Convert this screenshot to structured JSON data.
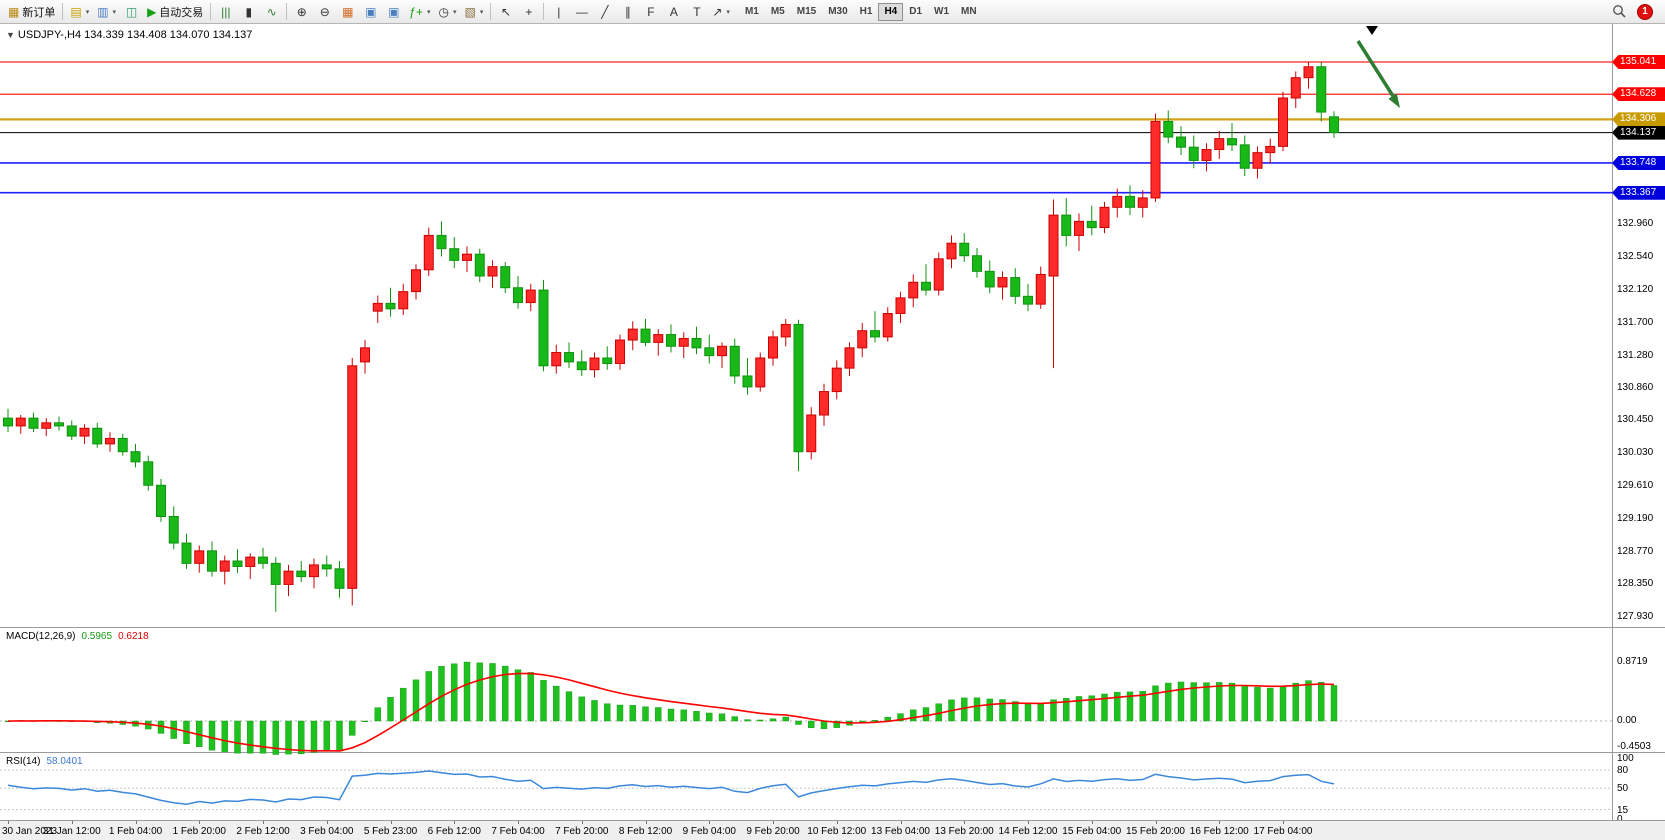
{
  "colors": {
    "up": "#ff2a2a",
    "up_border": "#cc0000",
    "down": "#18b818",
    "down_border": "#0f930f",
    "macd_hist": "#1ec11e",
    "macd_hist_border": "#0f930f",
    "macd_signal": "#ff0000",
    "rsi_line": "#3b87d9",
    "level_red": "#ff2020",
    "level_gold": "#d4a017",
    "level_blue": "#2020ff",
    "level_black": "#000000",
    "arrow_green": "#2e7d32"
  },
  "toolbar": {
    "items": [
      {
        "type": "button",
        "name": "new-order-button",
        "glyph": "▦",
        "color": "#b8860b",
        "label": "新订单"
      },
      {
        "type": "sep"
      },
      {
        "type": "button",
        "name": "new-chart-button",
        "glyph": "▤",
        "color": "#c8a000",
        "dropdown": true
      },
      {
        "type": "button",
        "name": "profiles-button",
        "glyph": "▥",
        "color": "#4a7ebf",
        "dropdown": true
      },
      {
        "type": "button",
        "name": "refresh-button",
        "glyph": "◫",
        "color": "#2e9e6b"
      },
      {
        "type": "button",
        "name": "autotrading-button",
        "glyph": "▶",
        "color": "#15a015",
        "label": "自动交易"
      },
      {
        "type": "sep"
      },
      {
        "type": "button",
        "name": "bar-chart-button",
        "glyph": "|||",
        "color": "#2e7d32"
      },
      {
        "type": "button",
        "name": "candle-chart-button",
        "glyph": "▮",
        "color": "#333333"
      },
      {
        "type": "button",
        "name": "line-chart-button",
        "glyph": "∿",
        "color": "#2e7d32"
      },
      {
        "type": "sep"
      },
      {
        "type": "button",
        "name": "zoom-in-button",
        "glyph": "⊕",
        "color": "#333333"
      },
      {
        "type": "button",
        "name": "zoom-out-button",
        "glyph": "⊖",
        "color": "#333333"
      },
      {
        "type": "button",
        "name": "tile-windows-button",
        "glyph": "▦",
        "color": "#d2691e"
      },
      {
        "type": "button",
        "name": "arrange-windows-button",
        "glyph": "▣",
        "color": "#4a7ebf"
      },
      {
        "type": "button",
        "name": "cascade-windows-button",
        "glyph": "▣",
        "color": "#4a7ebf"
      },
      {
        "type": "button",
        "name": "indicators-button",
        "glyph": "ƒ+",
        "color": "#15a015",
        "dropdown": true
      },
      {
        "type": "button",
        "name": "periods-button",
        "glyph": "◷",
        "color": "#333333",
        "dropdown": true
      },
      {
        "type": "button",
        "name": "templates-button",
        "glyph": "▧",
        "color": "#8a6d3b",
        "dropdown": true
      },
      {
        "type": "sep"
      },
      {
        "type": "button",
        "name": "cursor-button",
        "glyph": "↖",
        "color": "#333333"
      },
      {
        "type": "button",
        "name": "crosshair-button",
        "glyph": "+",
        "color": "#333333"
      },
      {
        "type": "sep"
      },
      {
        "type": "button",
        "name": "vertical-line-button",
        "glyph": "|",
        "color": "#333333"
      },
      {
        "type": "button",
        "name": "horizontal-line-button",
        "glyph": "—",
        "color": "#333333"
      },
      {
        "type": "button",
        "name": "trendline-button",
        "glyph": "╱",
        "color": "#333333"
      },
      {
        "type": "button",
        "name": "channel-button",
        "glyph": "∥",
        "color": "#333333"
      },
      {
        "type": "button",
        "name": "fibonacci-button",
        "glyph": "F",
        "color": "#333333"
      },
      {
        "type": "button",
        "name": "text-button",
        "glyph": "A",
        "color": "#333333"
      },
      {
        "type": "button",
        "name": "label-button",
        "glyph": "T",
        "color": "#333333"
      },
      {
        "type": "button",
        "name": "shapes-button",
        "glyph": "↗",
        "color": "#333333",
        "dropdown": true
      }
    ],
    "timeframes": [
      "M1",
      "M5",
      "M15",
      "M30",
      "H1",
      "H4",
      "D1",
      "W1",
      "MN"
    ],
    "active_timeframe": "H4",
    "notification_count": "1"
  },
  "chart_data": {
    "type": "candlestick",
    "symbol": "USDJPY-",
    "timeframe": "H4",
    "title": "USDJPY-,H4 134.339 134.408 134.070 134.137",
    "ohlc_current": {
      "open": 134.339,
      "high": 134.408,
      "low": 134.07,
      "close": 134.137
    },
    "y_range": [
      127.8,
      135.53
    ],
    "grid": false,
    "candles": [
      [
        130.48,
        130.6,
        130.3,
        130.38
      ],
      [
        130.38,
        130.52,
        130.28,
        130.48
      ],
      [
        130.48,
        130.55,
        130.3,
        130.35
      ],
      [
        130.35,
        130.48,
        130.25,
        130.42
      ],
      [
        130.42,
        130.5,
        130.32,
        130.38
      ],
      [
        130.38,
        130.45,
        130.2,
        130.25
      ],
      [
        130.25,
        130.4,
        130.15,
        130.35
      ],
      [
        130.35,
        130.42,
        130.1,
        130.15
      ],
      [
        130.15,
        130.3,
        130.05,
        130.22
      ],
      [
        130.22,
        130.28,
        130.0,
        130.05
      ],
      [
        130.05,
        130.15,
        129.85,
        129.92
      ],
      [
        129.92,
        130.0,
        129.55,
        129.62
      ],
      [
        129.62,
        129.7,
        129.15,
        129.22
      ],
      [
        129.22,
        129.35,
        128.8,
        128.88
      ],
      [
        128.88,
        129.0,
        128.55,
        128.62
      ],
      [
        128.62,
        128.85,
        128.5,
        128.78
      ],
      [
        128.78,
        128.9,
        128.45,
        128.52
      ],
      [
        128.52,
        128.72,
        128.35,
        128.65
      ],
      [
        128.65,
        128.8,
        128.5,
        128.58
      ],
      [
        128.58,
        128.75,
        128.42,
        128.7
      ],
      [
        128.7,
        128.82,
        128.55,
        128.62
      ],
      [
        128.62,
        128.7,
        128.0,
        128.35
      ],
      [
        128.35,
        128.6,
        128.2,
        128.52
      ],
      [
        128.52,
        128.65,
        128.38,
        128.45
      ],
      [
        128.45,
        128.68,
        128.3,
        128.6
      ],
      [
        128.6,
        128.72,
        128.45,
        128.55
      ],
      [
        128.55,
        128.65,
        128.18,
        128.3
      ],
      [
        128.3,
        131.25,
        128.08,
        131.15
      ],
      [
        131.2,
        131.48,
        131.05,
        131.38
      ],
      [
        131.85,
        132.05,
        131.7,
        131.95
      ],
      [
        131.95,
        132.15,
        131.78,
        131.88
      ],
      [
        131.88,
        132.2,
        131.8,
        132.1
      ],
      [
        132.1,
        132.45,
        132.0,
        132.38
      ],
      [
        132.38,
        132.92,
        132.3,
        132.82
      ],
      [
        132.82,
        133.0,
        132.55,
        132.65
      ],
      [
        132.65,
        132.8,
        132.4,
        132.5
      ],
      [
        132.5,
        132.68,
        132.35,
        132.58
      ],
      [
        132.58,
        132.65,
        132.22,
        132.3
      ],
      [
        132.3,
        132.5,
        132.15,
        132.42
      ],
      [
        132.42,
        132.48,
        132.08,
        132.15
      ],
      [
        132.15,
        132.3,
        131.88,
        131.96
      ],
      [
        131.96,
        132.2,
        131.85,
        132.12
      ],
      [
        132.12,
        132.25,
        131.08,
        131.15
      ],
      [
        131.15,
        131.42,
        131.05,
        131.32
      ],
      [
        131.32,
        131.45,
        131.12,
        131.2
      ],
      [
        131.2,
        131.35,
        131.02,
        131.1
      ],
      [
        131.1,
        131.32,
        131.0,
        131.25
      ],
      [
        131.25,
        131.4,
        131.1,
        131.18
      ],
      [
        131.18,
        131.55,
        131.1,
        131.48
      ],
      [
        131.48,
        131.72,
        131.35,
        131.62
      ],
      [
        131.62,
        131.75,
        131.4,
        131.45
      ],
      [
        131.45,
        131.62,
        131.28,
        131.55
      ],
      [
        131.55,
        131.68,
        131.32,
        131.4
      ],
      [
        131.4,
        131.58,
        131.25,
        131.5
      ],
      [
        131.5,
        131.65,
        131.3,
        131.38
      ],
      [
        131.38,
        131.55,
        131.18,
        131.28
      ],
      [
        131.28,
        131.45,
        131.12,
        131.4
      ],
      [
        131.4,
        131.5,
        130.92,
        131.02
      ],
      [
        131.02,
        131.25,
        130.78,
        130.88
      ],
      [
        130.88,
        131.32,
        130.82,
        131.25
      ],
      [
        131.25,
        131.6,
        131.15,
        131.52
      ],
      [
        131.52,
        131.75,
        131.4,
        131.68
      ],
      [
        131.68,
        131.74,
        129.8,
        130.05
      ],
      [
        130.05,
        130.62,
        129.95,
        130.52
      ],
      [
        130.52,
        130.92,
        130.38,
        130.82
      ],
      [
        130.82,
        131.22,
        130.72,
        131.12
      ],
      [
        131.12,
        131.45,
        131.02,
        131.38
      ],
      [
        131.38,
        131.7,
        131.26,
        131.6
      ],
      [
        131.6,
        131.85,
        131.45,
        131.52
      ],
      [
        131.52,
        131.9,
        131.46,
        131.82
      ],
      [
        131.82,
        132.1,
        131.7,
        132.02
      ],
      [
        132.02,
        132.32,
        131.9,
        132.22
      ],
      [
        132.22,
        132.45,
        132.05,
        132.12
      ],
      [
        132.12,
        132.6,
        132.05,
        132.52
      ],
      [
        132.52,
        132.82,
        132.4,
        132.72
      ],
      [
        132.72,
        132.85,
        132.48,
        132.56
      ],
      [
        132.56,
        132.66,
        132.28,
        132.36
      ],
      [
        132.36,
        132.5,
        132.08,
        132.16
      ],
      [
        132.16,
        132.36,
        132.0,
        132.28
      ],
      [
        132.28,
        132.4,
        131.94,
        132.04
      ],
      [
        132.04,
        132.2,
        131.85,
        131.94
      ],
      [
        131.94,
        132.42,
        131.88,
        132.32
      ],
      [
        132.3,
        133.28,
        131.12,
        133.08
      ],
      [
        133.08,
        133.3,
        132.68,
        132.82
      ],
      [
        132.82,
        133.1,
        132.62,
        133.0
      ],
      [
        133.0,
        133.2,
        132.82,
        132.92
      ],
      [
        132.92,
        133.25,
        132.85,
        133.18
      ],
      [
        133.18,
        133.42,
        133.05,
        133.32
      ],
      [
        133.32,
        133.46,
        133.08,
        133.18
      ],
      [
        133.18,
        133.4,
        133.05,
        133.3
      ],
      [
        133.3,
        134.38,
        133.25,
        134.28
      ],
      [
        134.28,
        134.42,
        134.0,
        134.08
      ],
      [
        134.08,
        134.22,
        133.85,
        133.95
      ],
      [
        133.95,
        134.1,
        133.68,
        133.78
      ],
      [
        133.78,
        134.0,
        133.64,
        133.92
      ],
      [
        133.92,
        134.16,
        133.8,
        134.06
      ],
      [
        134.06,
        134.26,
        133.9,
        133.98
      ],
      [
        133.98,
        134.1,
        133.58,
        133.68
      ],
      [
        133.68,
        133.96,
        133.55,
        133.88
      ],
      [
        133.88,
        134.06,
        133.74,
        133.96
      ],
      [
        133.96,
        134.66,
        133.9,
        134.58
      ],
      [
        134.58,
        134.92,
        134.45,
        134.84
      ],
      [
        134.84,
        135.04,
        134.7,
        134.98
      ],
      [
        134.98,
        135.04,
        134.28,
        134.4
      ],
      [
        134.339,
        134.408,
        134.07,
        134.137
      ]
    ],
    "x_labels": [
      "30 Jan 2023",
      "31 Jan 12:00",
      "1 Feb 04:00",
      "1 Feb 20:00",
      "2 Feb 12:00",
      "3 Feb 04:00",
      "5 Feb 23:00",
      "6 Feb 12:00",
      "7 Feb 04:00",
      "7 Feb 20:00",
      "8 Feb 12:00",
      "9 Feb 04:00",
      "9 Feb 20:00",
      "10 Feb 12:00",
      "13 Feb 04:00",
      "13 Feb 20:00",
      "14 Feb 12:00",
      "15 Feb 04:00",
      "15 Feb 20:00",
      "16 Feb 12:00",
      "17 Feb 04:00"
    ],
    "price_ticks": [
      "132.960",
      "132.540",
      "132.120",
      "131.700",
      "131.280",
      "130.860",
      "130.450",
      "130.030",
      "129.610",
      "129.190",
      "128.770",
      "128.350",
      "127.930"
    ],
    "levels": [
      {
        "label": "135.041",
        "value": 135.041,
        "badge_color": "#ff0000",
        "line_color": "#ff2020",
        "width": 1.3
      },
      {
        "label": "134.628",
        "value": 134.628,
        "badge_color": "#ff0000",
        "line_color": "#ff2020",
        "width": 1.3
      },
      {
        "label": "134.306",
        "value": 134.306,
        "badge_color": "#c89b00",
        "line_color": "#d4a017",
        "width": 2.2
      },
      {
        "label": "134.137",
        "value": 134.137,
        "badge_color": "#000000",
        "line_color": "#000000",
        "width": 1
      },
      {
        "label": "133.748",
        "value": 133.748,
        "badge_color": "#0000dd",
        "line_color": "#2020ff",
        "width": 1.6
      },
      {
        "label": "133.367",
        "value": 133.367,
        "badge_color": "#0000dd",
        "line_color": "#2020ff",
        "width": 1.6
      }
    ],
    "annotations": {
      "arrow": "green-down-right-arrow",
      "marker": "black-triangle-top"
    },
    "indicators": {
      "macd": {
        "label": "MACD(12,26,9)",
        "value_main": "0.5965",
        "value_signal": "0.6218",
        "axis_labels": [
          "0.8719",
          "0.00",
          "-0.4503"
        ]
      },
      "rsi": {
        "label": "RSI(14)",
        "value": "58.0401",
        "axis_labels": [
          "100",
          "80",
          "50",
          "15",
          "0"
        ],
        "level_lines": [
          80,
          50,
          15
        ]
      }
    }
  }
}
